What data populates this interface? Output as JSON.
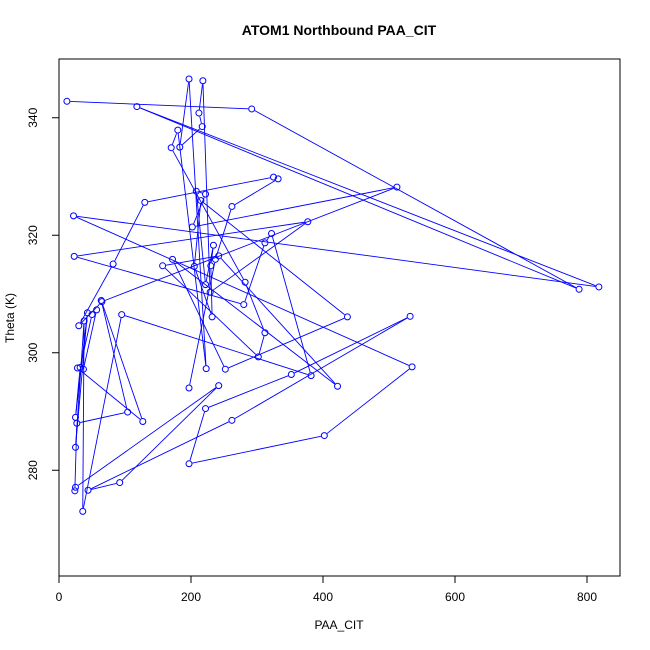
{
  "chart_data": {
    "type": "line",
    "title": "ATOM1 Northbound PAA_CIT",
    "xlabel": "PAA_CIT",
    "ylabel": "Theta (K)",
    "xlim": [
      0,
      850
    ],
    "ylim": [
      262,
      350
    ],
    "xticks": [
      "0",
      "200",
      "400",
      "600",
      "800"
    ],
    "xtick_values": [
      0,
      200,
      400,
      600,
      800
    ],
    "yticks": [
      "280",
      "300",
      "320",
      "340"
    ],
    "ytick_values": [
      280,
      300,
      320,
      340
    ],
    "grid": false,
    "legend": "none",
    "marker": "open-circle",
    "series_color": "#0000ff",
    "series": [
      {
        "x": [
          12,
          292,
          788,
          118,
          818,
          22,
          535,
          402,
          197,
          222,
          352,
          532,
          262,
          44,
          92,
          242,
          25,
          24,
          27,
          104,
          64,
          127,
          28,
          37,
          57,
          50,
          32,
          25,
          43,
          25,
          38,
          36,
          95,
          382,
          322,
          312,
          280,
          23,
          377,
          229,
          218,
          212,
          217,
          183,
          197,
          223,
          180,
          170,
          282,
          312,
          302,
          157,
          242,
          422,
          172,
          252,
          437,
          215,
          205,
          232,
          230,
          234,
          222,
          208,
          222,
          202,
          512,
          65,
          30,
          82,
          130,
          325,
          332,
          262,
          237,
          197
        ],
        "y": [
          342.8,
          341.5,
          310.8,
          341.9,
          311.2,
          323.3,
          297.6,
          285.9,
          281.1,
          290.5,
          296.3,
          306.2,
          288.5,
          276.6,
          277.9,
          294.4,
          277.1,
          276.5,
          288.0,
          289.9,
          308.9,
          288.3,
          297.4,
          297.2,
          307.3,
          306.5,
          297.5,
          289.0,
          306.8,
          283.9,
          305.4,
          273.0,
          306.5,
          296.1,
          320.3,
          318.7,
          308.2,
          316.4,
          322.3,
          310.3,
          346.3,
          340.8,
          338.5,
          335.0,
          346.6,
          297.3,
          337.9,
          334.9,
          312.0,
          303.4,
          299.3,
          314.8,
          316.5,
          294.3,
          315.9,
          297.2,
          306.1,
          325.9,
          314.7,
          306.1,
          314.8,
          318.3,
          311.6,
          327.5,
          327.0,
          321.4,
          328.2,
          308.7,
          304.6,
          315.1,
          325.6,
          329.9,
          329.6,
          324.9,
          315.9,
          294.0
        ]
      }
    ]
  }
}
